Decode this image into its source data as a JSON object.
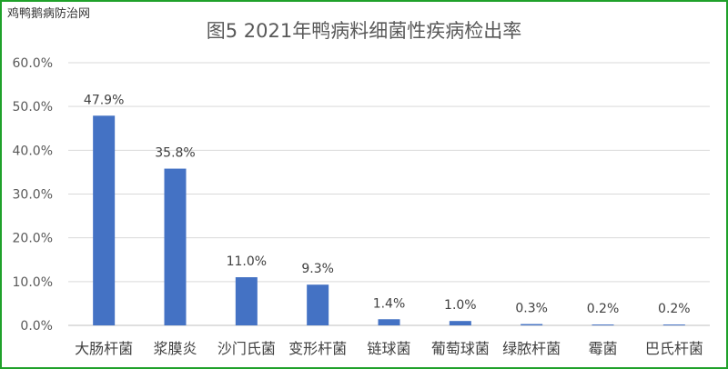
{
  "watermark": "鸡鸭鹅病防治网",
  "colors": {
    "bar": "#4472c4",
    "frame": "#1fa12a",
    "grid": "#d9d9d9",
    "axis": "#bfbfbf"
  },
  "chart_data": {
    "type": "bar",
    "title": "图5 2021年鸭病料细菌性疾病检出率",
    "xlabel": "",
    "ylabel": "",
    "ylim": [
      0,
      60
    ],
    "yticks": [
      "0.0%",
      "10.0%",
      "20.0%",
      "30.0%",
      "40.0%",
      "50.0%",
      "60.0%"
    ],
    "grid": true,
    "categories": [
      "大肠杆菌",
      "浆膜炎",
      "沙门氏菌",
      "变形杆菌",
      "链球菌",
      "葡萄球菌",
      "绿脓杆菌",
      "霉菌",
      "巴氏杆菌"
    ],
    "values": [
      47.9,
      35.8,
      11.0,
      9.3,
      1.4,
      1.0,
      0.3,
      0.2,
      0.2
    ],
    "data_labels": [
      "47.9%",
      "35.8%",
      "11.0%",
      "9.3%",
      "1.4%",
      "1.0%",
      "0.3%",
      "0.2%",
      "0.2%"
    ]
  }
}
